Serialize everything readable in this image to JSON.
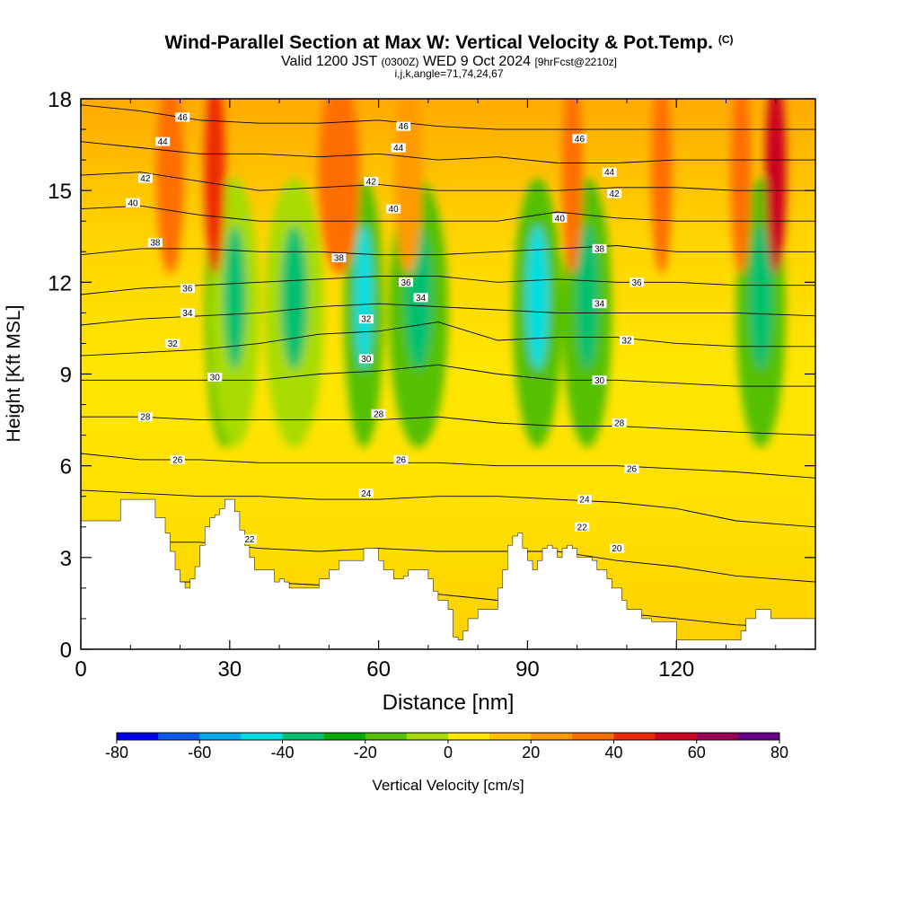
{
  "header": {
    "title": "Wind-Parallel Section at Max W: Vertical Velocity & Pot.Temp.",
    "copyright": "(C)",
    "valid_prefix": "Valid 1200 JST",
    "valid_utc": "(0300Z)",
    "valid_date": "WED 9 Oct 2024",
    "forecast": "[9hrFcst@2210z]",
    "grid_info": "i,j,k,angle=71,74,24,67"
  },
  "chart_data": {
    "type": "heatmap",
    "xlabel": "Distance [nm]",
    "ylabel": "Height [Kft MSL]",
    "xlim": [
      0,
      148
    ],
    "ylim": [
      0,
      18
    ],
    "xticks": [
      "0",
      "30",
      "60",
      "90",
      "120"
    ],
    "yticks": [
      "0",
      "3",
      "6",
      "9",
      "12",
      "15",
      "18"
    ],
    "colorbar": {
      "label": "Vertical Velocity [cm/s]",
      "range": [
        -80,
        80
      ],
      "tick_labels": [
        "-80",
        "-60",
        "-40",
        "-20",
        "0",
        "20",
        "40",
        "60",
        "80"
      ],
      "colors": [
        "#0000ee",
        "#0a5ce8",
        "#00aaee",
        "#00dde0",
        "#00c070",
        "#00aa00",
        "#55c000",
        "#a8dc00",
        "#ffe600",
        "#ffc000",
        "#ff9a00",
        "#ff6e00",
        "#ee2a00",
        "#cc0022",
        "#990055",
        "#660088"
      ]
    },
    "terrain_profile": {
      "x": [
        0,
        6,
        8,
        14,
        15,
        17,
        18,
        19,
        20,
        21,
        22,
        23,
        24,
        25,
        26,
        27,
        28,
        29,
        30,
        31,
        32,
        33,
        34,
        35,
        36,
        38,
        39,
        40,
        41,
        42,
        43,
        45,
        47,
        48,
        50,
        51,
        52,
        53,
        54,
        55,
        56,
        57,
        59,
        60,
        61,
        62,
        63,
        64,
        65,
        66,
        67,
        68,
        70,
        71,
        72,
        73,
        74,
        75,
        76,
        77,
        78,
        80,
        82,
        84,
        85,
        86,
        87,
        88,
        89,
        90,
        91,
        92,
        93,
        94,
        95,
        96,
        97,
        98,
        99,
        100,
        101,
        102,
        103,
        104,
        105,
        106,
        107,
        108,
        109,
        110,
        111,
        112,
        113,
        114,
        115,
        116,
        117,
        118,
        119,
        120,
        121,
        122,
        124,
        126,
        128,
        130,
        132,
        133,
        134,
        135,
        136,
        137,
        138,
        139,
        140,
        143,
        145,
        148
      ],
      "height": [
        4.2,
        4.2,
        4.9,
        4.9,
        4.3,
        3.8,
        3.2,
        2.6,
        2.2,
        2.0,
        2.3,
        2.7,
        3.4,
        4.0,
        4.3,
        4.4,
        4.6,
        4.9,
        4.9,
        4.5,
        3.9,
        3.4,
        3.0,
        2.6,
        2.6,
        2.6,
        2.2,
        2.3,
        2.2,
        2.0,
        2.0,
        2.0,
        2.0,
        2.3,
        2.6,
        2.6,
        2.9,
        2.9,
        2.9,
        2.9,
        2.9,
        3.3,
        3.3,
        2.9,
        2.6,
        2.6,
        2.3,
        2.3,
        2.4,
        2.6,
        2.6,
        2.6,
        2.3,
        1.9,
        1.6,
        1.6,
        1.3,
        0.4,
        0.3,
        0.6,
        1.0,
        1.3,
        1.3,
        2.0,
        2.6,
        3.4,
        3.7,
        3.8,
        3.3,
        2.9,
        2.6,
        2.9,
        3.3,
        3.4,
        3.3,
        3.0,
        3.3,
        3.4,
        3.3,
        3.0,
        3.0,
        3.0,
        2.9,
        2.6,
        2.6,
        2.3,
        2.0,
        2.0,
        1.6,
        1.3,
        1.3,
        1.3,
        1.0,
        1.0,
        0.9,
        0.9,
        0.9,
        0.9,
        0.9,
        0.3,
        0.3,
        0.3,
        0.3,
        0.3,
        0.3,
        0.3,
        0.3,
        0.6,
        1.0,
        1.0,
        1.3,
        1.3,
        1.3,
        1.0,
        1.0,
        1.0,
        1.0,
        1.0
      ],
      "notes": "white area below profile = below ground"
    },
    "updraft_bands": [
      {
        "x": 29,
        "width": 4,
        "w": -30
      },
      {
        "x": 31,
        "width": 5,
        "w": -20
      },
      {
        "x": 43,
        "width": 6,
        "w": -20
      },
      {
        "x": 57,
        "width": 4,
        "w": -30
      },
      {
        "x": 68,
        "width": 6,
        "w": -25
      },
      {
        "x": 92,
        "width": 5,
        "w": -30
      },
      {
        "x": 102,
        "width": 5,
        "w": -25
      },
      {
        "x": 137,
        "width": 5,
        "w": -25
      }
    ],
    "downdraft_bands": [
      {
        "x": 27,
        "width": 3,
        "w": 40
      },
      {
        "x": 52,
        "width": 6,
        "w": 30
      },
      {
        "x": 66,
        "width": 4,
        "w": 25
      },
      {
        "x": 99,
        "width": 3,
        "w": 30
      },
      {
        "x": 133,
        "width": 3,
        "w": 35
      },
      {
        "x": 140,
        "width": 3,
        "w": 55
      },
      {
        "x": 18,
        "width": 4,
        "w": 35
      },
      {
        "x": 117,
        "width": 3,
        "w": 30
      }
    ],
    "theta_contours": [
      {
        "label": "20",
        "heights": [
          2.2,
          2.2,
          2.2,
          2.2,
          2.1,
          2.1,
          1.8,
          1.6,
          1.4,
          1.2,
          1.0,
          0.8,
          0.7
        ]
      },
      {
        "label": "22",
        "heights": [
          3.6,
          3.5,
          3.5,
          3.3,
          3.2,
          3.3,
          3.2,
          3.2,
          3.2,
          2.9,
          2.7,
          2.4,
          2.2
        ]
      },
      {
        "label": "24",
        "heights": [
          5.2,
          5.1,
          5.0,
          5.0,
          4.9,
          4.9,
          5.0,
          5.0,
          4.9,
          4.8,
          4.6,
          4.2,
          4.0
        ]
      },
      {
        "label": "26",
        "heights": [
          6.4,
          6.2,
          6.2,
          6.1,
          6.1,
          6.1,
          6.1,
          6.0,
          6.0,
          6.0,
          5.9,
          5.8,
          5.6
        ]
      },
      {
        "label": "28",
        "heights": [
          7.6,
          7.6,
          7.5,
          7.5,
          7.5,
          7.5,
          7.6,
          7.4,
          7.3,
          7.3,
          7.2,
          7.1,
          7.0
        ]
      },
      {
        "label": "30",
        "heights": [
          8.8,
          8.8,
          8.8,
          8.8,
          9.0,
          9.1,
          9.3,
          9.0,
          8.8,
          8.8,
          8.7,
          8.6,
          8.6
        ]
      },
      {
        "label": "32",
        "heights": [
          9.6,
          9.7,
          9.8,
          10.0,
          10.3,
          10.4,
          10.7,
          10.1,
          10.2,
          10.2,
          10.0,
          9.9,
          9.9
        ]
      },
      {
        "label": "34",
        "heights": [
          10.6,
          10.8,
          10.9,
          11.0,
          11.2,
          11.3,
          11.2,
          11.1,
          11.0,
          11.0,
          11.0,
          11.0,
          10.9
        ]
      },
      {
        "label": "36",
        "heights": [
          11.6,
          11.8,
          11.9,
          12.0,
          12.1,
          12.2,
          12.2,
          12.0,
          12.1,
          12.0,
          12.0,
          11.9,
          11.9
        ]
      },
      {
        "label": "38",
        "heights": [
          12.9,
          13.1,
          13.1,
          13.0,
          13.0,
          12.9,
          12.9,
          13.0,
          13.1,
          13.2,
          13.0,
          13.0,
          13.0
        ]
      },
      {
        "label": "40",
        "heights": [
          14.4,
          14.5,
          14.2,
          14.0,
          14.0,
          14.0,
          14.0,
          14.0,
          14.3,
          14.1,
          14.0,
          14.0,
          14.0
        ]
      },
      {
        "label": "42",
        "heights": [
          15.5,
          15.6,
          15.3,
          15.0,
          15.1,
          15.2,
          15.0,
          15.0,
          15.0,
          15.1,
          15.1,
          15.0,
          15.0
        ]
      },
      {
        "label": "44",
        "heights": [
          16.6,
          16.4,
          16.2,
          16.2,
          16.1,
          16.2,
          16.0,
          16.1,
          15.9,
          15.9,
          16.0,
          16.0,
          16.0
        ]
      },
      {
        "label": "46",
        "heights": [
          17.8,
          17.6,
          17.3,
          17.2,
          17.2,
          17.3,
          17.1,
          17.0,
          17.0,
          17.0,
          17.0,
          17.0,
          17.0
        ]
      }
    ],
    "contour_x": [
      0,
      12,
      24,
      36,
      48,
      60,
      72,
      84,
      96,
      108,
      120,
      132,
      148
    ],
    "contour_label_positions": [
      {
        "label": "46",
        "x": 20.5,
        "y": 17.4
      },
      {
        "label": "46",
        "x": 65,
        "y": 17.1
      },
      {
        "label": "46",
        "x": 100.5,
        "y": 16.7
      },
      {
        "label": "44",
        "x": 16.5,
        "y": 16.6
      },
      {
        "label": "44",
        "x": 64,
        "y": 16.4
      },
      {
        "label": "44",
        "x": 106.5,
        "y": 15.6
      },
      {
        "label": "42",
        "x": 13,
        "y": 15.4
      },
      {
        "label": "42",
        "x": 58.5,
        "y": 15.3
      },
      {
        "label": "42",
        "x": 107.5,
        "y": 14.9
      },
      {
        "label": "40",
        "x": 10.5,
        "y": 14.6
      },
      {
        "label": "40",
        "x": 63,
        "y": 14.4
      },
      {
        "label": "40",
        "x": 96.5,
        "y": 14.1
      },
      {
        "label": "38",
        "x": 15,
        "y": 13.3
      },
      {
        "label": "38",
        "x": 52,
        "y": 12.8
      },
      {
        "label": "38",
        "x": 104.5,
        "y": 13.1
      },
      {
        "label": "36",
        "x": 21.5,
        "y": 11.8
      },
      {
        "label": "36",
        "x": 65.5,
        "y": 12.0
      },
      {
        "label": "36",
        "x": 112,
        "y": 12.0
      },
      {
        "label": "34",
        "x": 21.5,
        "y": 11.0
      },
      {
        "label": "34",
        "x": 68.5,
        "y": 11.5
      },
      {
        "label": "34",
        "x": 104.5,
        "y": 11.3
      },
      {
        "label": "32",
        "x": 18.5,
        "y": 10.0
      },
      {
        "label": "32",
        "x": 57.5,
        "y": 10.8
      },
      {
        "label": "32",
        "x": 110,
        "y": 10.1
      },
      {
        "label": "30",
        "x": 27,
        "y": 8.9
      },
      {
        "label": "30",
        "x": 57.5,
        "y": 9.5
      },
      {
        "label": "30",
        "x": 104.5,
        "y": 8.8
      },
      {
        "label": "28",
        "x": 13,
        "y": 7.6
      },
      {
        "label": "28",
        "x": 60,
        "y": 7.7
      },
      {
        "label": "28",
        "x": 108.5,
        "y": 7.4
      },
      {
        "label": "26",
        "x": 19.5,
        "y": 6.2
      },
      {
        "label": "26",
        "x": 64.5,
        "y": 6.2
      },
      {
        "label": "26",
        "x": 111,
        "y": 5.9
      },
      {
        "label": "24",
        "x": 57.5,
        "y": 5.1
      },
      {
        "label": "24",
        "x": 101.5,
        "y": 4.9
      },
      {
        "label": "22",
        "x": 34,
        "y": 3.6
      },
      {
        "label": "22",
        "x": 101,
        "y": 4.0
      },
      {
        "label": "20",
        "x": 108,
        "y": 3.3
      }
    ]
  }
}
